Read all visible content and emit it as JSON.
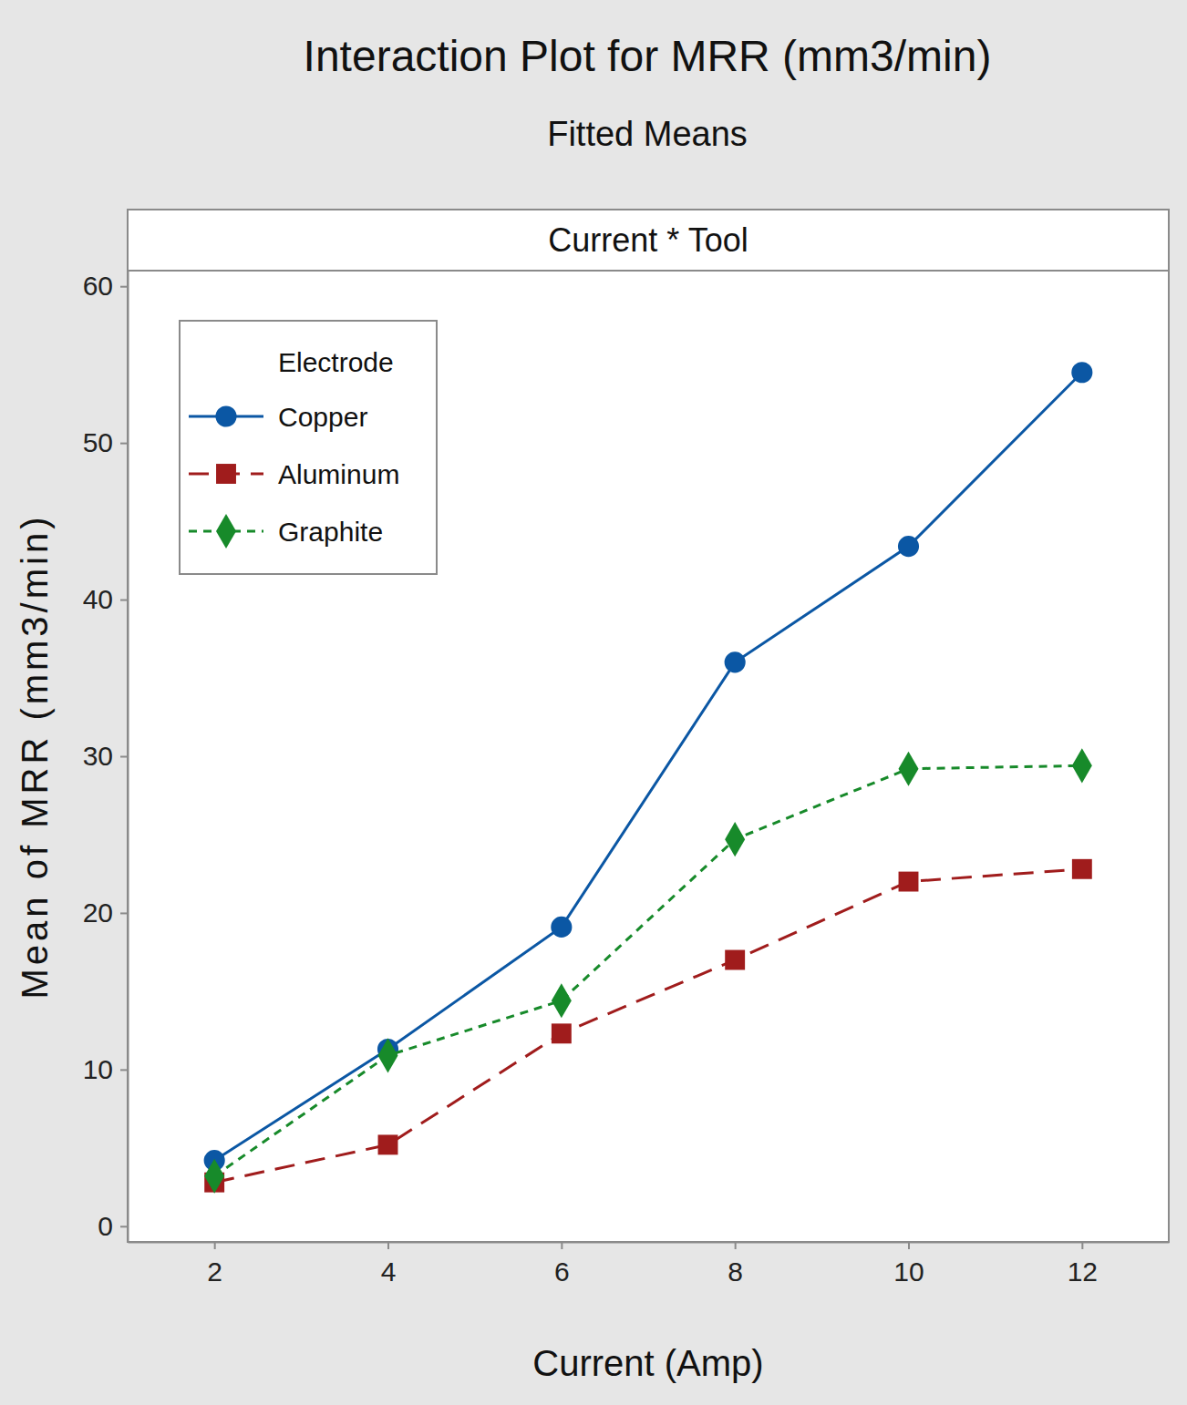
{
  "chart_data": {
    "type": "line",
    "title": "Interaction Plot for MRR (mm3/min)",
    "subtitle": "Fitted Means",
    "panel_title": "Current * Tool",
    "x_label": "Current (Amp)",
    "y_label": "Mean of MRR (mm3/min)",
    "legend_title": "Electrode",
    "legend": "top-left",
    "grid": false,
    "x": [
      2,
      4,
      6,
      8,
      10,
      12
    ],
    "xlim": [
      1,
      13
    ],
    "xticks": [
      2,
      4,
      6,
      8,
      10,
      12
    ],
    "ylim": [
      -1,
      61
    ],
    "yticks": [
      0,
      10,
      20,
      30,
      40,
      50,
      60
    ],
    "series": [
      {
        "name": "Copper",
        "color": "#0b57a4",
        "marker": "circle",
        "line_style": "solid",
        "values": [
          4.2,
          11.3,
          19.1,
          36.0,
          43.4,
          54.5
        ]
      },
      {
        "name": "Aluminum",
        "color": "#a01c1c",
        "marker": "square",
        "line_style": "dashed",
        "values": [
          2.8,
          5.2,
          12.3,
          17.0,
          22.0,
          22.8
        ]
      },
      {
        "name": "Graphite",
        "color": "#178a2a",
        "marker": "diamond",
        "line_style": "dotted",
        "values": [
          3.2,
          10.9,
          14.4,
          24.7,
          29.2,
          29.4
        ]
      }
    ]
  }
}
